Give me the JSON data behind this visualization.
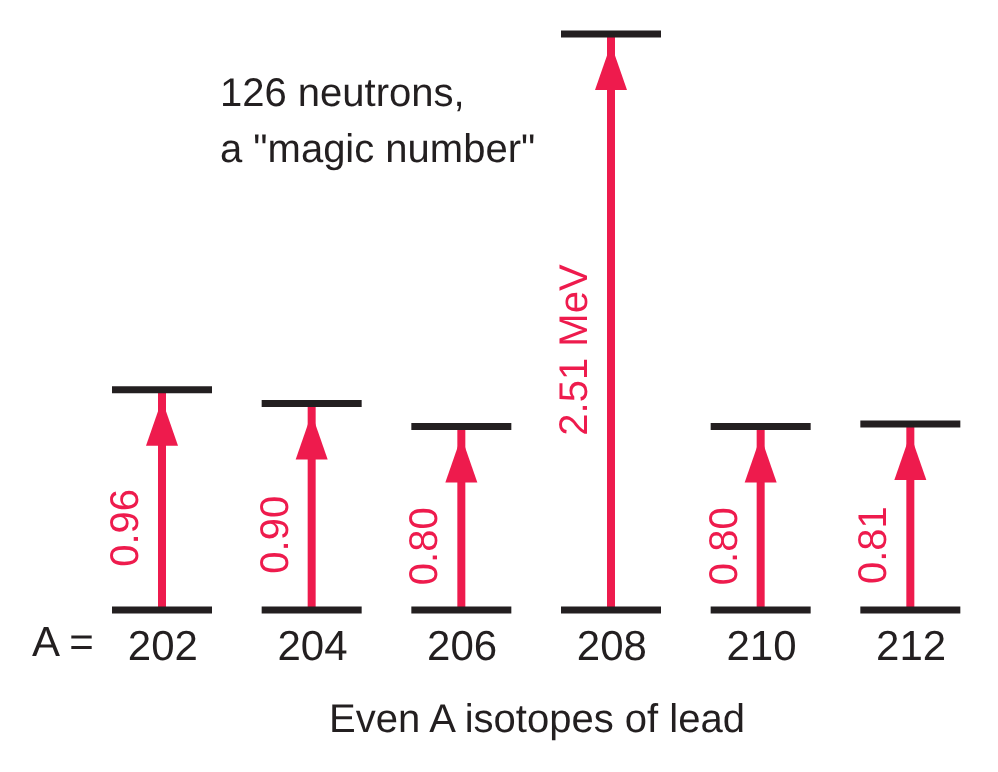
{
  "chart_data": {
    "type": "bar",
    "categories": [
      "202",
      "204",
      "206",
      "208",
      "210",
      "212"
    ],
    "values": [
      0.96,
      0.9,
      0.8,
      2.51,
      0.8,
      0.81
    ],
    "value_labels": [
      "0.96",
      "0.90",
      "0.80",
      "2.51 MeV",
      "0.80",
      "0.81"
    ],
    "color": "#ee1b4d",
    "xlabel": "Even A isotopes of lead",
    "annotations": [
      "126 neutrons,\na \"magic number\"",
      "A ="
    ]
  }
}
